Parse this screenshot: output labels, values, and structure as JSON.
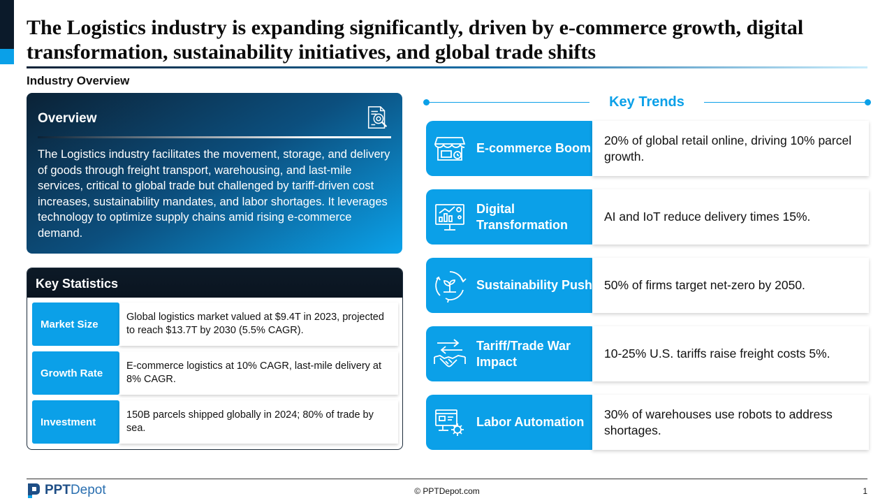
{
  "title": "The Logistics industry is expanding significantly, driven by e-commerce growth, digital transformation, sustainability initiatives, and global trade shifts",
  "section_label": "Industry Overview",
  "overview": {
    "title": "Overview",
    "icon": "document-search-icon",
    "body": "The Logistics industry facilitates the movement, storage, and delivery of goods through freight transport, warehousing, and last-mile services, critical to global trade but challenged by tariff-driven cost increases, sustainability mandates, and labor shortages. It leverages technology to optimize supply chains amid rising e-commerce demand."
  },
  "key_statistics": {
    "title": "Key Statistics",
    "rows": [
      {
        "label": "Market Size",
        "value": "Global logistics market valued at $9.4T in 2023, projected to reach $13.7T by 2030 (5.5% CAGR)."
      },
      {
        "label": "Growth Rate",
        "value": "E-commerce logistics at 10% CAGR, last-mile delivery at 8% CAGR."
      },
      {
        "label": "Investment",
        "value": "150B parcels shipped globally in 2024; 80% of trade by sea."
      }
    ]
  },
  "key_trends": {
    "title": "Key Trends",
    "items": [
      {
        "label": "E-commerce Boom",
        "icon": "storefront-icon",
        "desc": "20% of global retail online, driving 10% parcel growth."
      },
      {
        "label": "Digital Transformation",
        "icon": "analytics-monitor-icon",
        "desc": "AI and IoT reduce delivery times 15%."
      },
      {
        "label": "Sustainability Push",
        "icon": "sustainability-cycle-icon",
        "desc": "50% of firms target net-zero by 2050."
      },
      {
        "label": "Tariff/Trade War Impact",
        "icon": "handshake-arrows-icon",
        "desc": "10-25% U.S. tariffs raise freight costs 5%."
      },
      {
        "label": "Labor Automation",
        "icon": "automation-gear-icon",
        "desc": "30% of warehouses use robots to address shortages."
      }
    ]
  },
  "footer": {
    "logo_part1": "PPT",
    "logo_part2": "Depot",
    "copyright": "© PPTDepot.com",
    "page": "1"
  },
  "colors": {
    "accent": "#0ba0e8",
    "dark": "#0b1a2a"
  }
}
